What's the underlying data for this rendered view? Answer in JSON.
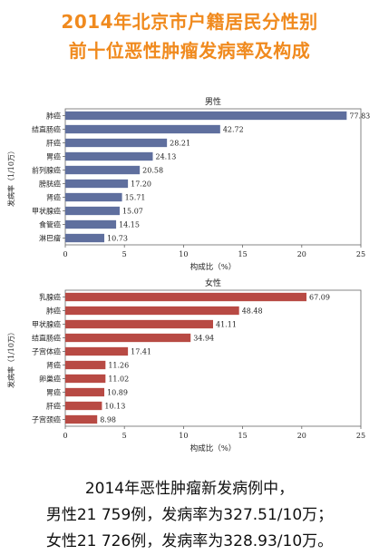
{
  "title": {
    "line1": "2014年北京市户籍居民分性别",
    "line2": "前十位恶性肿瘤发病率及构成"
  },
  "colors": {
    "title": "#f08a1e",
    "male_bar": "#5f6f9e",
    "female_bar": "#b84a44"
  },
  "chart_data": [
    {
      "type": "bar",
      "orientation": "horizontal",
      "title": "男性",
      "xlabel": "构成比（%）",
      "ylabel": "发病率（1/10万）",
      "xlim": [
        0,
        25
      ],
      "xticks": [
        "0",
        "5",
        "10",
        "15",
        "20",
        "25"
      ],
      "categories": [
        "肺癌",
        "结直肠癌",
        "肝癌",
        "胃癌",
        "前列腺癌",
        "膀胱癌",
        "肾癌",
        "甲状腺癌",
        "食管癌",
        "淋巴瘤"
      ],
      "values": [
        77.83,
        42.72,
        28.21,
        24.13,
        20.58,
        17.2,
        15.71,
        15.07,
        14.15,
        10.73
      ],
      "value_labels": [
        "77.83",
        "42.72",
        "28.21",
        "24.13",
        "20.58",
        "17.20",
        "15.71",
        "15.07",
        "14.15",
        "10.73"
      ],
      "bar_lengths_percent": [
        23.8,
        13.1,
        8.6,
        7.4,
        6.3,
        5.3,
        4.8,
        4.6,
        4.3,
        3.3
      ],
      "grid": false
    },
    {
      "type": "bar",
      "orientation": "horizontal",
      "title": "女性",
      "xlabel": "构成比（%）",
      "ylabel": "发病率（1/10万）",
      "xlim": [
        0,
        25
      ],
      "xticks": [
        "0",
        "5",
        "10",
        "15",
        "20",
        "25"
      ],
      "categories": [
        "乳腺癌",
        "肺癌",
        "甲状腺癌",
        "结直肠癌",
        "子宫体癌",
        "肾癌",
        "卵巢癌",
        "胃癌",
        "肝癌",
        "子宫颈癌"
      ],
      "values": [
        67.09,
        48.48,
        41.11,
        34.94,
        17.41,
        11.26,
        11.02,
        10.89,
        10.13,
        8.98
      ],
      "value_labels": [
        "67.09",
        "48.48",
        "41.11",
        "34.94",
        "17.41",
        "11.26",
        "11.02",
        "10.89",
        "10.13",
        "8.98"
      ],
      "bar_lengths_percent": [
        20.4,
        14.7,
        12.5,
        10.6,
        5.3,
        3.4,
        3.4,
        3.3,
        3.1,
        2.7
      ],
      "grid": false
    }
  ],
  "caption": {
    "line1": "2014年恶性肿瘤新发病例中，",
    "line2": "男性21 759例，发病率为327.51/10万；",
    "line3": "女性21 726例，发病率为328.93/10万。"
  }
}
